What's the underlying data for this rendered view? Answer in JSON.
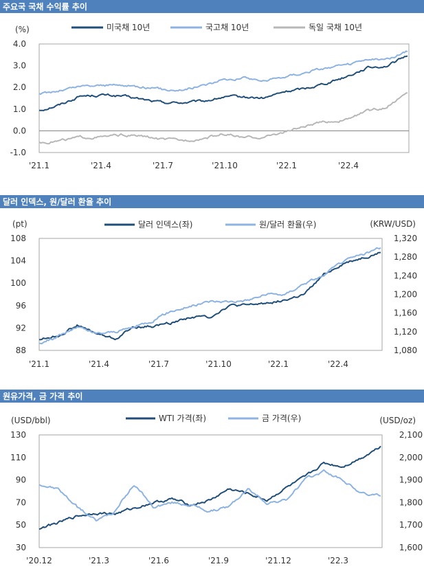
{
  "colors": {
    "header_bg": "#4f81bd",
    "dark_navy": "#1f4e79",
    "light_blue": "#8db3e2",
    "gray": "#b7b7b7"
  },
  "chart_data": [
    {
      "type": "line",
      "title": "주요국 국채 수익률 추이",
      "yunit": "(%)",
      "ylim": [
        -1.0,
        4.0
      ],
      "yticks": [
        "4.0",
        "3.0",
        "2.0",
        "1.0",
        "0.0",
        "-1.0"
      ],
      "xticks": [
        "'21.1",
        "'21.4",
        "'21.7",
        "'21.10",
        "'22.1",
        "'22.4"
      ],
      "legend": "top",
      "series": [
        {
          "name": "미국채 10년",
          "color": "#1f4e79",
          "x": [
            "21.1",
            "21.2",
            "21.3",
            "21.4",
            "21.5",
            "21.6",
            "21.7",
            "21.8",
            "21.9",
            "21.10",
            "21.11",
            "21.12",
            "22.1",
            "22.2",
            "22.3",
            "22.4",
            "22.5",
            "22.6",
            "22.7"
          ],
          "values": [
            0.95,
            1.2,
            1.6,
            1.65,
            1.6,
            1.45,
            1.3,
            1.3,
            1.35,
            1.55,
            1.55,
            1.5,
            1.8,
            1.95,
            2.2,
            2.5,
            2.9,
            3.0,
            3.45
          ]
        },
        {
          "name": "국고채 10년",
          "color": "#8db3e2",
          "x": [
            "21.1",
            "21.2",
            "21.3",
            "21.4",
            "21.5",
            "21.6",
            "21.7",
            "21.8",
            "21.9",
            "21.10",
            "21.11",
            "21.12",
            "22.1",
            "22.2",
            "22.3",
            "22.4",
            "22.5",
            "22.6",
            "22.7"
          ],
          "values": [
            1.7,
            1.85,
            2.05,
            2.1,
            2.1,
            2.05,
            1.9,
            1.9,
            2.1,
            2.35,
            2.45,
            2.3,
            2.5,
            2.7,
            2.9,
            3.0,
            3.25,
            3.3,
            3.65
          ]
        },
        {
          "name": "독일 국채 10년",
          "color": "#b7b7b7",
          "x": [
            "21.1",
            "21.2",
            "21.3",
            "21.4",
            "21.5",
            "21.6",
            "21.7",
            "21.8",
            "21.9",
            "21.10",
            "21.11",
            "21.12",
            "22.1",
            "22.2",
            "22.3",
            "22.4",
            "22.5",
            "22.6",
            "22.7"
          ],
          "values": [
            -0.55,
            -0.45,
            -0.3,
            -0.3,
            -0.2,
            -0.25,
            -0.4,
            -0.45,
            -0.35,
            -0.15,
            -0.3,
            -0.3,
            -0.05,
            0.2,
            0.4,
            0.5,
            0.9,
            1.1,
            1.75
          ]
        }
      ]
    },
    {
      "type": "line",
      "title": "달러 인덱스, 원/달러 환율 추이",
      "yunit_left": "(pt)",
      "yunit_right": "(KRW/USD)",
      "ylim_left": [
        88,
        108
      ],
      "ylim_right": [
        1080,
        1320
      ],
      "yticks_left": [
        "108",
        "104",
        "100",
        "96",
        "92",
        "88"
      ],
      "yticks_right": [
        "1,320",
        "1,280",
        "1,240",
        "1,200",
        "1,160",
        "1,120",
        "1,080"
      ],
      "xticks": [
        "'21.1",
        "'21.4",
        "'21.7",
        "'21.10",
        "'22.1",
        "'22.4"
      ],
      "legend": "top",
      "series": [
        {
          "name": "달러 인덱스(좌)",
          "color": "#1f4e79",
          "axis": "left",
          "x": [
            "21.1",
            "21.2",
            "21.3",
            "21.4",
            "21.5",
            "21.6",
            "21.7",
            "21.8",
            "21.9",
            "21.10",
            "21.11",
            "21.12",
            "22.1",
            "22.2",
            "22.3",
            "22.4",
            "22.5",
            "22.6",
            "22.7"
          ],
          "values": [
            90.0,
            90.6,
            92.5,
            91.0,
            90.0,
            92.2,
            92.3,
            93.0,
            94.0,
            94.0,
            96.0,
            96.0,
            96.5,
            97.0,
            98.0,
            101.5,
            103.5,
            104.5,
            105.5
          ]
        },
        {
          "name": "원/달러 환율(우)",
          "color": "#8db3e2",
          "axis": "right",
          "x": [
            "21.1",
            "21.2",
            "21.3",
            "21.4",
            "21.5",
            "21.6",
            "21.7",
            "21.8",
            "21.9",
            "21.10",
            "21.11",
            "21.12",
            "22.1",
            "22.2",
            "22.3",
            "22.4",
            "22.5",
            "22.6",
            "22.7"
          ],
          "values": [
            1095,
            1110,
            1130,
            1115,
            1120,
            1130,
            1145,
            1165,
            1175,
            1185,
            1185,
            1188,
            1200,
            1200,
            1225,
            1240,
            1270,
            1285,
            1300
          ]
        }
      ]
    },
    {
      "type": "line",
      "title": "원유가격, 금 가격 추이",
      "yunit_left": "(USD/bbl)",
      "yunit_right": "(USD/oz)",
      "ylim_left": [
        30,
        130
      ],
      "ylim_right": [
        1600,
        2100
      ],
      "yticks_left": [
        "130",
        "110",
        "90",
        "70",
        "50",
        "30"
      ],
      "yticks_right": [
        "2,100",
        "2,000",
        "1,900",
        "1,800",
        "1,700",
        "1,600"
      ],
      "xticks": [
        "'20.12",
        "'21.3",
        "'21.6",
        "'21.9",
        "'21.12",
        "'22.3"
      ],
      "legend": "top",
      "series": [
        {
          "name": "WTI 가격(좌)",
          "color": "#1f4e79",
          "axis": "left",
          "x": [
            "20.12",
            "21.1",
            "21.2",
            "21.3",
            "21.4",
            "21.5",
            "21.6",
            "21.7",
            "21.8",
            "21.9",
            "21.10",
            "21.11",
            "21.12",
            "22.1",
            "22.2",
            "22.3",
            "22.4",
            "22.5",
            "22.6"
          ],
          "values": [
            47,
            52,
            58,
            61,
            60,
            65,
            70,
            73,
            68,
            72,
            82,
            78,
            72,
            83,
            92,
            105,
            102,
            110,
            120
          ]
        },
        {
          "name": "금 가격(우)",
          "color": "#8db3e2",
          "axis": "right",
          "x": [
            "20.12",
            "21.1",
            "21.2",
            "21.3",
            "21.4",
            "21.5",
            "21.6",
            "21.7",
            "21.8",
            "21.9",
            "21.10",
            "21.11",
            "21.12",
            "22.1",
            "22.2",
            "22.3",
            "22.4",
            "22.5",
            "22.6"
          ],
          "values": [
            1880,
            1860,
            1780,
            1720,
            1760,
            1880,
            1780,
            1800,
            1790,
            1760,
            1780,
            1860,
            1800,
            1810,
            1900,
            1940,
            1900,
            1840,
            1830
          ]
        }
      ]
    }
  ]
}
